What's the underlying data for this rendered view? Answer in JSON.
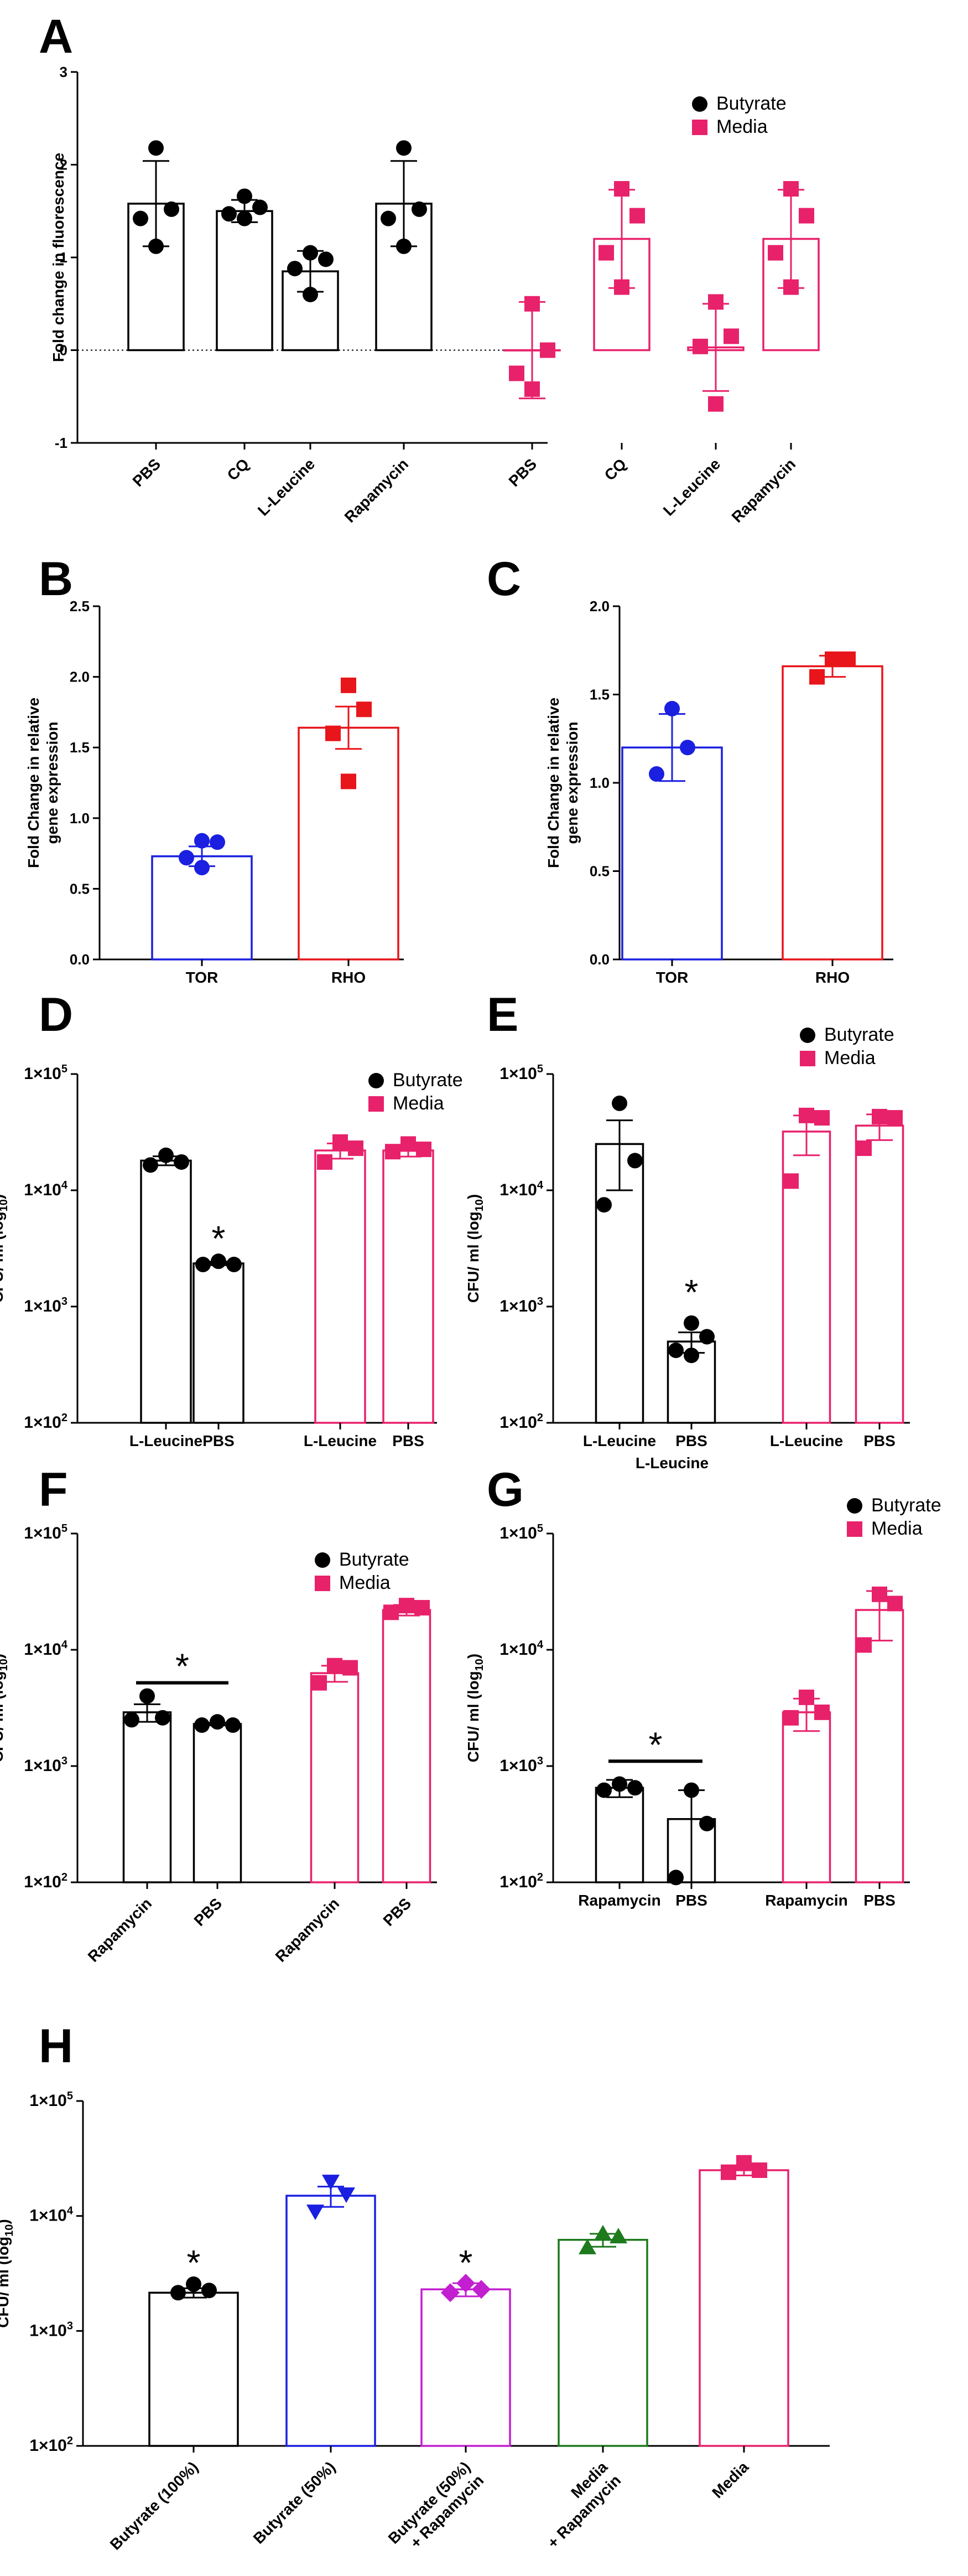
{
  "chart_data": [
    {
      "panel": "A",
      "type": "bar",
      "scale": "linear",
      "ylabel": "Fold change in fluorescence",
      "ylim": [
        -1,
        3
      ],
      "yticks": [
        {
          "v": -1,
          "label": "-1"
        },
        {
          "v": 0,
          "label": "0"
        },
        {
          "v": 1,
          "label": "1"
        },
        {
          "v": 2,
          "label": "2"
        },
        {
          "v": 3,
          "label": "3"
        }
      ],
      "zero_line": "dotted",
      "legend": [
        {
          "label": "Butyrate",
          "color": "#000000",
          "marker": "circle"
        },
        {
          "label": "Media",
          "color": "#e8216b",
          "marker": "square"
        }
      ],
      "cat_rotate": true,
      "bars": [
        {
          "label": "PBS",
          "mean": 1.58,
          "err": 0.46,
          "color": "#000000",
          "marker": "circle",
          "points": [
            2.18,
            1.52,
            1.42,
            1.12
          ]
        },
        {
          "label": "CQ",
          "mean": 1.5,
          "err": 0.12,
          "color": "#000000",
          "marker": "circle",
          "points": [
            1.66,
            1.54,
            1.47,
            1.42
          ]
        },
        {
          "label": "L-Leucine",
          "mean": 0.85,
          "err": 0.22,
          "color": "#000000",
          "marker": "circle",
          "points": [
            1.05,
            0.98,
            0.88,
            0.6
          ]
        },
        {
          "label": "Rapamycin",
          "mean": 1.58,
          "err": 0.46,
          "color": "#000000",
          "marker": "circle",
          "points": [
            2.18,
            1.52,
            1.42,
            1.12
          ]
        },
        {
          "label": "PBS",
          "mean": 0.0,
          "err": 0.52,
          "color": "#e8216b",
          "marker": "square",
          "points": [
            0.5,
            0.0,
            -0.25,
            -0.42
          ]
        },
        {
          "label": "CQ",
          "mean": 1.2,
          "err": 0.53,
          "color": "#e8216b",
          "marker": "square",
          "points": [
            1.74,
            1.45,
            1.05,
            0.68
          ]
        },
        {
          "label": "L-Leucine",
          "mean": 0.03,
          "err": 0.47,
          "color": "#e8216b",
          "marker": "square",
          "points": [
            0.52,
            0.15,
            0.04,
            -0.58
          ]
        },
        {
          "label": "Rapamycin",
          "mean": 1.2,
          "err": 0.53,
          "color": "#e8216b",
          "marker": "square",
          "points": [
            1.74,
            1.45,
            1.05,
            0.68
          ]
        }
      ],
      "stars": []
    },
    {
      "panel": "B",
      "type": "bar",
      "scale": "linear",
      "ylabel": [
        "Fold Change in relative",
        "gene expression"
      ],
      "ylim": [
        0,
        2.5
      ],
      "yticks": [
        {
          "v": 0,
          "label": "0.0"
        },
        {
          "v": 0.5,
          "label": "0.5"
        },
        {
          "v": 1.0,
          "label": "1.0"
        },
        {
          "v": 1.5,
          "label": "1.5"
        },
        {
          "v": 2.0,
          "label": "2.0"
        },
        {
          "v": 2.5,
          "label": "2.5"
        }
      ],
      "legend": [],
      "cat_rotate": false,
      "bars": [
        {
          "label": "TOR",
          "mean": 0.73,
          "err": 0.07,
          "color": "#1a1fe0",
          "marker": "circle",
          "points": [
            0.84,
            0.83,
            0.72,
            0.65
          ]
        },
        {
          "label": "RHO",
          "mean": 1.64,
          "err": 0.15,
          "color": "#e8151b",
          "marker": "square",
          "points": [
            1.94,
            1.77,
            1.6,
            1.26
          ]
        }
      ],
      "stars": []
    },
    {
      "panel": "C",
      "type": "bar",
      "scale": "linear",
      "ylabel": [
        "Fold Change in relative",
        "gene expression"
      ],
      "ylim": [
        0,
        2.0
      ],
      "yticks": [
        {
          "v": 0,
          "label": "0.0"
        },
        {
          "v": 0.5,
          "label": "0.5"
        },
        {
          "v": 1.0,
          "label": "1.0"
        },
        {
          "v": 1.5,
          "label": "1.5"
        },
        {
          "v": 2.0,
          "label": "2.0"
        }
      ],
      "legend": [],
      "cat_rotate": false,
      "bars": [
        {
          "label": "TOR",
          "mean": 1.2,
          "err": 0.19,
          "color": "#1a1fe0",
          "marker": "circle",
          "points": [
            1.42,
            1.2,
            1.05
          ]
        },
        {
          "label": "RHO",
          "mean": 1.66,
          "err": 0.06,
          "color": "#e8151b",
          "marker": "square",
          "points": [
            1.7,
            1.7,
            1.6
          ]
        }
      ],
      "stars": []
    },
    {
      "panel": "D",
      "type": "bar",
      "scale": "log10",
      "ylabel": "CFU/ ml (log",
      "ylabel_sub": "10",
      "ylabel_end": ")",
      "ylim": [
        100,
        100000
      ],
      "yticks": [
        {
          "v": 100,
          "base": "1×10",
          "exp": "2"
        },
        {
          "v": 1000,
          "base": "1×10",
          "exp": "3"
        },
        {
          "v": 10000,
          "base": "1×10",
          "exp": "4"
        },
        {
          "v": 100000,
          "base": "1×10",
          "exp": "5"
        }
      ],
      "legend": [
        {
          "label": "Butyrate",
          "color": "#000000",
          "marker": "circle"
        },
        {
          "label": "Media",
          "color": "#e8216b",
          "marker": "square"
        }
      ],
      "cat_rotate": false,
      "bars": [
        {
          "label": "L-Leucine",
          "mean": 18000,
          "err": 1600,
          "color": "#000000",
          "marker": "circle",
          "points": [
            20000,
            17500,
            16500
          ]
        },
        {
          "label": "PBS",
          "mean": 2350,
          "err": 80,
          "color": "#000000",
          "marker": "circle",
          "points": [
            2450,
            2300,
            2300
          ]
        },
        {
          "label": "L-Leucine",
          "mean": 22000,
          "err": 3300,
          "color": "#e8216b",
          "marker": "square",
          "points": [
            26000,
            23000,
            17500
          ]
        },
        {
          "label": "PBS",
          "mean": 22000,
          "err": 2500,
          "color": "#e8216b",
          "marker": "square",
          "points": [
            25000,
            22500,
            21500
          ]
        }
      ],
      "stars": [
        {
          "bar": 1,
          "y": 4200,
          "label": "*"
        }
      ]
    },
    {
      "panel": "E",
      "type": "bar",
      "scale": "log10",
      "ylabel": "CFU/ ml (log",
      "ylabel_sub": "10",
      "ylabel_end": ")",
      "ylim": [
        100,
        100000
      ],
      "yticks": [
        {
          "v": 100,
          "base": "1×10",
          "exp": "2"
        },
        {
          "v": 1000,
          "base": "1×10",
          "exp": "3"
        },
        {
          "v": 10000,
          "base": "1×10",
          "exp": "4"
        },
        {
          "v": 100000,
          "base": "1×10",
          "exp": "5"
        }
      ],
      "xlabel": "L-Leucine",
      "legend": [
        {
          "label": "Butyrate",
          "color": "#000000",
          "marker": "circle"
        },
        {
          "label": "Media",
          "color": "#e8216b",
          "marker": "square"
        }
      ],
      "cat_rotate": false,
      "bars": [
        {
          "label": "L-Leucine",
          "mean": 25000,
          "err": 15000,
          "color": "#000000",
          "marker": "circle",
          "points": [
            56000,
            18000,
            7500
          ]
        },
        {
          "label": "PBS",
          "mean": 500,
          "err": 100,
          "color": "#000000",
          "marker": "circle",
          "points": [
            720,
            550,
            420,
            380
          ]
        },
        {
          "label": "L-Leucine",
          "mean": 32000,
          "err": 12000,
          "color": "#e8216b",
          "marker": "square",
          "points": [
            44000,
            42000,
            12000
          ]
        },
        {
          "label": "PBS",
          "mean": 36000,
          "err": 9000,
          "color": "#e8216b",
          "marker": "square",
          "points": [
            43000,
            42000,
            23000
          ]
        }
      ],
      "stars": [
        {
          "bar": 1,
          "y": 1450,
          "label": "*"
        }
      ]
    },
    {
      "panel": "F",
      "type": "bar",
      "scale": "log10",
      "ylabel": "CFU/ ml (log",
      "ylabel_sub": "10",
      "ylabel_end": ")",
      "ylim": [
        100,
        100000
      ],
      "yticks": [
        {
          "v": 100,
          "base": "1×10",
          "exp": "2"
        },
        {
          "v": 1000,
          "base": "1×10",
          "exp": "3"
        },
        {
          "v": 10000,
          "base": "1×10",
          "exp": "4"
        },
        {
          "v": 100000,
          "base": "1×10",
          "exp": "5"
        }
      ],
      "legend": [
        {
          "label": "Butyrate",
          "color": "#000000",
          "marker": "circle"
        },
        {
          "label": "Media",
          "color": "#e8216b",
          "marker": "square"
        }
      ],
      "cat_rotate": true,
      "bars": [
        {
          "label": "Rapamycin",
          "mean": 2900,
          "err": 500,
          "color": "#000000",
          "marker": "circle",
          "points": [
            4000,
            2600,
            2500
          ]
        },
        {
          "label": "PBS",
          "mean": 2300,
          "err": 60,
          "color": "#000000",
          "marker": "circle",
          "points": [
            2400,
            2250,
            2250
          ]
        },
        {
          "label": "Rapamycin",
          "mean": 6300,
          "err": 1000,
          "color": "#e8216b",
          "marker": "square",
          "points": [
            7300,
            7000,
            5200
          ]
        },
        {
          "label": "PBS",
          "mean": 22000,
          "err": 2300,
          "color": "#e8216b",
          "marker": "square",
          "points": [
            24000,
            23000,
            21000
          ]
        }
      ],
      "stars": [
        {
          "bracket": [
            0,
            1
          ],
          "y": 5200,
          "label": "*"
        }
      ]
    },
    {
      "panel": "G",
      "type": "bar",
      "scale": "log10",
      "ylabel": "CFU/ ml (log",
      "ylabel_sub": "10",
      "ylabel_end": ")",
      "ylim": [
        100,
        100000
      ],
      "yticks": [
        {
          "v": 100,
          "base": "1×10",
          "exp": "2"
        },
        {
          "v": 1000,
          "base": "1×10",
          "exp": "3"
        },
        {
          "v": 10000,
          "base": "1×10",
          "exp": "4"
        },
        {
          "v": 100000,
          "base": "1×10",
          "exp": "5"
        }
      ],
      "legend": [
        {
          "label": "Butyrate",
          "color": "#000000",
          "marker": "circle"
        },
        {
          "label": "Media",
          "color": "#e8216b",
          "marker": "square"
        }
      ],
      "cat_rotate": false,
      "bars": [
        {
          "label": "Rapamycin",
          "mean": 650,
          "err": 110,
          "color": "#000000",
          "marker": "circle",
          "points": [
            700,
            650,
            620
          ]
        },
        {
          "label": "PBS",
          "mean": 350,
          "err": 270,
          "color": "#000000",
          "marker": "circle",
          "points": [
            620,
            320,
            110
          ]
        },
        {
          "label": "Rapamycin",
          "mean": 2900,
          "err": 900,
          "color": "#e8216b",
          "marker": "square",
          "points": [
            3900,
            2900,
            2600
          ]
        },
        {
          "label": "PBS",
          "mean": 22000,
          "err": 10000,
          "color": "#e8216b",
          "marker": "square",
          "points": [
            30000,
            25000,
            11000
          ]
        }
      ],
      "stars": [
        {
          "bracket": [
            0,
            1
          ],
          "y": 1100,
          "label": "*"
        }
      ]
    },
    {
      "panel": "H",
      "type": "bar",
      "scale": "log10",
      "ylabel": "CFU/ ml (log",
      "ylabel_sub": "10",
      "ylabel_end": ")",
      "ylim": [
        100,
        100000
      ],
      "yticks": [
        {
          "v": 100,
          "base": "1×10",
          "exp": "2"
        },
        {
          "v": 1000,
          "base": "1×10",
          "exp": "3"
        },
        {
          "v": 10000,
          "base": "1×10",
          "exp": "4"
        },
        {
          "v": 100000,
          "base": "1×10",
          "exp": "5"
        }
      ],
      "legend": [],
      "cat_rotate": true,
      "bars": [
        {
          "label": [
            "Butyrate (100%)"
          ],
          "mean": 2150,
          "err": 200,
          "color": "#000000",
          "marker": "circle",
          "points": [
            2550,
            2250,
            2150
          ]
        },
        {
          "label": [
            "Butyrate (50%)"
          ],
          "mean": 15000,
          "err": 3000,
          "color": "#1a1fe0",
          "marker": "triangle-down",
          "points": [
            20000,
            15500,
            11000
          ]
        },
        {
          "label": [
            "Butyrate (50%)",
            "+ Rapamycin"
          ],
          "mean": 2300,
          "err": 300,
          "color": "#c21fd0",
          "marker": "diamond",
          "points": [
            2600,
            2300,
            2150
          ]
        },
        {
          "label": [
            "Media",
            "+ Rapamycin"
          ],
          "mean": 6200,
          "err": 800,
          "color": "#1d7a1d",
          "marker": "triangle-up",
          "points": [
            7000,
            6600,
            5300
          ]
        },
        {
          "label": [
            "Media"
          ],
          "mean": 25000,
          "err": 2500,
          "color": "#e8216b",
          "marker": "square",
          "points": [
            29000,
            25000,
            24000
          ]
        }
      ],
      "stars": [
        {
          "bar": 0,
          "y": 4300,
          "label": "*"
        },
        {
          "bar": 2,
          "y": 4300,
          "label": "*"
        }
      ]
    }
  ]
}
